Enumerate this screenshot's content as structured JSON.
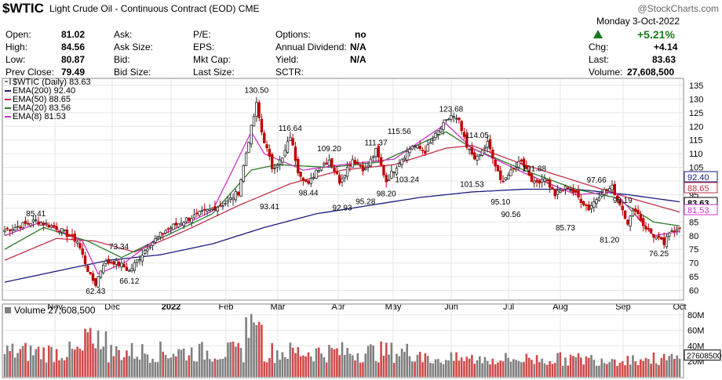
{
  "header": {
    "symbol": "$WTIC",
    "description": "Light Crude Oil - Continuous Contract (EOD)",
    "exchange": "CME",
    "watermark": "@StockCharts.com",
    "date": "Monday  3-Oct-2022",
    "pct_change": "+5.21%",
    "rows": [
      {
        "l1": "Open:",
        "v1": "81.02",
        "l2": "Ask:",
        "v2": "",
        "l3": "P/E:",
        "v3": "",
        "l4": "Options:",
        "v4": "no",
        "l5": "",
        "v5": ""
      },
      {
        "l1": "High:",
        "v1": "84.56",
        "l2": "Ask Size:",
        "v2": "",
        "l3": "EPS:",
        "v3": "",
        "l4": "Annual Dividend:",
        "v4": "N/A",
        "l5": "Chg:",
        "v5": "+4.14"
      },
      {
        "l1": "Low:",
        "v1": "80.87",
        "l2": "Bid:",
        "v2": "",
        "l3": "Mkt Cap:",
        "v3": "",
        "l4": "Yield:",
        "v4": "N/A",
        "l5": "Last:",
        "v5": "83.63"
      },
      {
        "l1": "Prev Close:",
        "v1": "79.49",
        "l2": "Bid Size:",
        "v2": "",
        "l3": "Last Size:",
        "v3": "",
        "l4": "SCTR:",
        "v4": "",
        "l5": "Volume:",
        "v5": "27,608,500"
      }
    ]
  },
  "colors": {
    "up": "#2a2a2a",
    "down": "#c00000",
    "ema200": "#1a1a80",
    "ema50": "#c0304a",
    "ema20": "#2a7a2a",
    "ema8": "#cc33cc",
    "vol_up": "#808080",
    "vol_down": "#d04a4a",
    "grid": "#e6e6e6",
    "ema_blue_tag": "#1a1a80"
  },
  "chart_data": {
    "type": "candlestick",
    "legend": [
      {
        "name": "$WTIC (Daily) 83.63",
        "color": "#000000"
      },
      {
        "name": "EMA(200) 92.40",
        "color": "#1a1a80"
      },
      {
        "name": "EMA(50) 88.65",
        "color": "#c0304a"
      },
      {
        "name": "EMA(20) 83.56",
        "color": "#2a7a2a"
      },
      {
        "name": "EMA(8) 81.53",
        "color": "#cc33cc"
      }
    ],
    "x_labels": [
      "Nov",
      "Dec",
      "2022",
      "Feb",
      "Mar",
      "Apr",
      "May",
      "Jun",
      "Jul",
      "Aug",
      "Sep",
      "Oct"
    ],
    "y_ticks": [
      60,
      65,
      70,
      75,
      80,
      85,
      90,
      95,
      100,
      105,
      110,
      115,
      120,
      125,
      130,
      135
    ],
    "ylim": [
      57,
      137
    ],
    "right_tags": [
      {
        "label": "92.40",
        "value": 92.4,
        "color": "#1a1a80"
      },
      {
        "label": "88.65",
        "value": 88.65,
        "color": "#c0304a"
      },
      {
        "label": "83.63",
        "value": 83.63,
        "color": "#000000"
      },
      {
        "label": "81.53",
        "value": 81.53,
        "color": "#cc33cc"
      }
    ],
    "price_anchors": [
      [
        0,
        82
      ],
      [
        12,
        85.4
      ],
      [
        20,
        83
      ],
      [
        28,
        78
      ],
      [
        33,
        65
      ],
      [
        35,
        62.4
      ],
      [
        38,
        70
      ],
      [
        42,
        70.5
      ],
      [
        46,
        68.6
      ],
      [
        48,
        67
      ],
      [
        55,
        76
      ],
      [
        62,
        82
      ],
      [
        70,
        86
      ],
      [
        78,
        89
      ],
      [
        86,
        92.5
      ],
      [
        90,
        96
      ],
      [
        94,
        115
      ],
      [
        97,
        128
      ],
      [
        99,
        118
      ],
      [
        103,
        105
      ],
      [
        107,
        108
      ],
      [
        110,
        116.6
      ],
      [
        113,
        104
      ],
      [
        117,
        98.4
      ],
      [
        120,
        104
      ],
      [
        125,
        108
      ],
      [
        129,
        100
      ],
      [
        134,
        108
      ],
      [
        139,
        104
      ],
      [
        143,
        111
      ],
      [
        147,
        100
      ],
      [
        152,
        107
      ],
      [
        157,
        113
      ],
      [
        162,
        111
      ],
      [
        167,
        118
      ],
      [
        172,
        124
      ],
      [
        175,
        121.5
      ],
      [
        178,
        112
      ],
      [
        182,
        108
      ],
      [
        186,
        114
      ],
      [
        191,
        100
      ],
      [
        195,
        103
      ],
      [
        199,
        108
      ],
      [
        204,
        99
      ],
      [
        208,
        101.5
      ],
      [
        212,
        95
      ],
      [
        217,
        98
      ],
      [
        221,
        94
      ],
      [
        225,
        90
      ],
      [
        230,
        96
      ],
      [
        234,
        97.6
      ],
      [
        237,
        92
      ],
      [
        240,
        85
      ],
      [
        243,
        90
      ],
      [
        246,
        84
      ],
      [
        250,
        80
      ],
      [
        254,
        77
      ],
      [
        257,
        82
      ],
      [
        260,
        83.6
      ]
    ],
    "ema_lines": {
      "ema200": [
        [
          0,
          63
        ],
        [
          20,
          67
        ],
        [
          40,
          71
        ],
        [
          60,
          73
        ],
        [
          80,
          77
        ],
        [
          100,
          83
        ],
        [
          120,
          88
        ],
        [
          140,
          91
        ],
        [
          160,
          94
        ],
        [
          180,
          96
        ],
        [
          200,
          97
        ],
        [
          220,
          97
        ],
        [
          240,
          95
        ],
        [
          260,
          92.4
        ]
      ],
      "ema50": [
        [
          0,
          71
        ],
        [
          20,
          79
        ],
        [
          35,
          78
        ],
        [
          50,
          74
        ],
        [
          70,
          82
        ],
        [
          90,
          91
        ],
        [
          110,
          99
        ],
        [
          130,
          104
        ],
        [
          150,
          106
        ],
        [
          170,
          112
        ],
        [
          180,
          113
        ],
        [
          200,
          106
        ],
        [
          220,
          100
        ],
        [
          240,
          94
        ],
        [
          260,
          88.65
        ]
      ],
      "ema20": [
        [
          0,
          75
        ],
        [
          15,
          83
        ],
        [
          32,
          78
        ],
        [
          45,
          72
        ],
        [
          60,
          79
        ],
        [
          80,
          88
        ],
        [
          95,
          104
        ],
        [
          105,
          106
        ],
        [
          125,
          105
        ],
        [
          145,
          107
        ],
        [
          170,
          118
        ],
        [
          180,
          112
        ],
        [
          200,
          104
        ],
        [
          220,
          97
        ],
        [
          235,
          94
        ],
        [
          250,
          85
        ],
        [
          260,
          83.56
        ]
      ],
      "ema8": [
        [
          0,
          80
        ],
        [
          14,
          85
        ],
        [
          30,
          78
        ],
        [
          36,
          66
        ],
        [
          46,
          70
        ],
        [
          60,
          80
        ],
        [
          80,
          89
        ],
        [
          95,
          118
        ],
        [
          100,
          110
        ],
        [
          115,
          104
        ],
        [
          130,
          106
        ],
        [
          150,
          108
        ],
        [
          170,
          121
        ],
        [
          180,
          112
        ],
        [
          200,
          103
        ],
        [
          220,
          95
        ],
        [
          235,
          96
        ],
        [
          250,
          80
        ],
        [
          260,
          81.53
        ]
      ]
    },
    "price_annotations": [
      {
        "label": "85.41",
        "i": 12,
        "v": 85.41,
        "pos": "above"
      },
      {
        "label": "62.43",
        "i": 35,
        "v": 62.43,
        "pos": "below"
      },
      {
        "label": "73.34",
        "i": 44,
        "v": 73.34,
        "pos": "above"
      },
      {
        "label": "66.12",
        "i": 48,
        "v": 66.12,
        "pos": "below"
      },
      {
        "label": "130.50",
        "i": 97,
        "v": 130.5,
        "pos": "above"
      },
      {
        "label": "93.41",
        "i": 102,
        "v": 93.41,
        "pos": "below"
      },
      {
        "label": "116.64",
        "i": 110,
        "v": 116.64,
        "pos": "above"
      },
      {
        "label": "98.44",
        "i": 117,
        "v": 98.44,
        "pos": "below"
      },
      {
        "label": "109.20",
        "i": 125,
        "v": 109.2,
        "pos": "above"
      },
      {
        "label": "92.93",
        "i": 130,
        "v": 92.93,
        "pos": "below"
      },
      {
        "label": "95.28",
        "i": 139,
        "v": 95.28,
        "pos": "below"
      },
      {
        "label": "111.37",
        "i": 143,
        "v": 111.37,
        "pos": "above"
      },
      {
        "label": "98.20",
        "i": 147,
        "v": 98.2,
        "pos": "below"
      },
      {
        "label": "115.56",
        "i": 152,
        "v": 115.56,
        "pos": "above"
      },
      {
        "label": "103.24",
        "i": 155,
        "v": 103.24,
        "pos": "below"
      },
      {
        "label": "123.68",
        "i": 172,
        "v": 123.68,
        "pos": "above"
      },
      {
        "label": "114.05",
        "i": 182,
        "v": 114.05,
        "pos": "above"
      },
      {
        "label": "101.53",
        "i": 180,
        "v": 101.53,
        "pos": "below"
      },
      {
        "label": "95.10",
        "i": 191,
        "v": 95.1,
        "pos": "below"
      },
      {
        "label": "90.56",
        "i": 195,
        "v": 90.56,
        "pos": "below"
      },
      {
        "label": "101.88",
        "i": 204,
        "v": 101.88,
        "pos": "above"
      },
      {
        "label": "85.73",
        "i": 216,
        "v": 85.73,
        "pos": "below"
      },
      {
        "label": "97.66",
        "i": 228,
        "v": 97.66,
        "pos": "above"
      },
      {
        "label": "90.19",
        "i": 238,
        "v": 90.19,
        "pos": "above"
      },
      {
        "label": "81.20",
        "i": 233,
        "v": 81.2,
        "pos": "below"
      },
      {
        "label": "76.25",
        "i": 252,
        "v": 76.25,
        "pos": "below"
      }
    ],
    "volume": {
      "label": "Volume 27,608,500",
      "ticks": [
        "80M",
        "60M",
        "40M",
        "20M"
      ],
      "tick_values": [
        80,
        60,
        40,
        20
      ],
      "ymax": 92,
      "last_tag": "27608500",
      "last_value": 27.6
    }
  }
}
